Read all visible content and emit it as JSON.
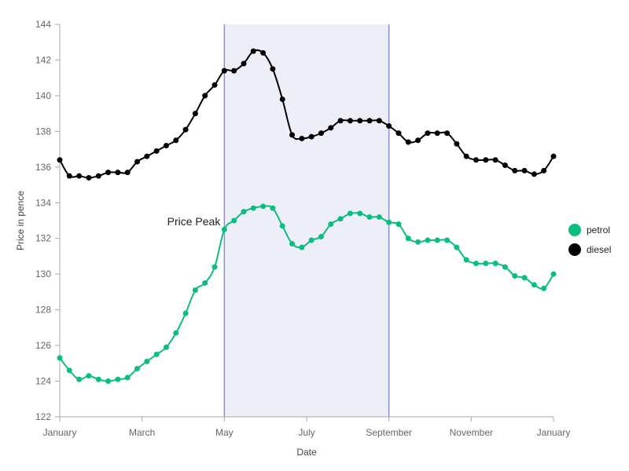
{
  "chart_data": {
    "type": "line",
    "title": "",
    "xlabel": "Date",
    "ylabel": "Price in pence",
    "x_ticks": [
      "January",
      "March",
      "May",
      "July",
      "September",
      "November",
      "January"
    ],
    "x_range_weeks": [
      0,
      52
    ],
    "ylim": [
      122,
      144
    ],
    "y_ticks": [
      122,
      124,
      126,
      128,
      130,
      132,
      134,
      136,
      138,
      140,
      142,
      144
    ],
    "grid": false,
    "legend_position": "right",
    "highlight": {
      "label": "Price Peak",
      "x_start": "May",
      "x_end": "September",
      "fill": "#eeeef8",
      "stroke": "#8a8fcf"
    },
    "colors": {
      "petrol": "#0abf7e",
      "diesel": "#000000",
      "axis": "#aaaaaa",
      "text": "#666666"
    },
    "series": [
      {
        "name": "petrol",
        "color": "#0abf7e",
        "values": [
          125.3,
          124.6,
          124.1,
          124.3,
          124.1,
          124.0,
          124.1,
          124.2,
          124.7,
          125.1,
          125.5,
          125.9,
          126.7,
          127.8,
          129.1,
          129.5,
          130.4,
          132.5,
          133.0,
          133.5,
          133.7,
          133.8,
          133.7,
          132.7,
          131.7,
          131.5,
          131.9,
          132.1,
          132.8,
          133.1,
          133.4,
          133.4,
          133.2,
          133.2,
          132.9,
          132.8,
          132.0,
          131.8,
          131.9,
          131.9,
          131.9,
          131.5,
          130.8,
          130.6,
          130.6,
          130.6,
          130.4,
          129.9,
          129.8,
          129.4,
          129.2,
          130.0
        ]
      },
      {
        "name": "diesel",
        "color": "#000000",
        "values": [
          136.4,
          135.5,
          135.5,
          135.4,
          135.5,
          135.7,
          135.7,
          135.7,
          136.3,
          136.6,
          136.9,
          137.2,
          137.5,
          138.1,
          139.0,
          140.0,
          140.6,
          141.4,
          141.4,
          141.8,
          142.5,
          142.4,
          141.5,
          139.8,
          137.8,
          137.6,
          137.7,
          137.9,
          138.2,
          138.6,
          138.6,
          138.6,
          138.6,
          138.6,
          138.3,
          137.9,
          137.4,
          137.5,
          137.9,
          137.9,
          137.9,
          137.3,
          136.6,
          136.4,
          136.4,
          136.4,
          136.1,
          135.8,
          135.8,
          135.6,
          135.8,
          136.6
        ]
      }
    ]
  }
}
